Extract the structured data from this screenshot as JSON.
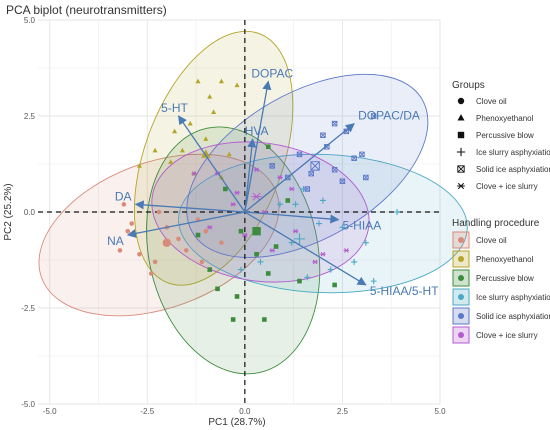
{
  "chart_data": {
    "type": "scatter",
    "title": "PCA biplot (neurotransmitters)",
    "xlabel": "PC1 (28.7%)",
    "ylabel": "PC2 (25.2%)",
    "xlim": [
      -5.3,
      5.0
    ],
    "ylim": [
      -5.0,
      5.0
    ],
    "xticks": [
      "-5.0",
      "-2.5",
      "0.0",
      "2.5",
      "5.0"
    ],
    "xtick_values": [
      -5.0,
      -2.5,
      0.0,
      2.5,
      5.0
    ],
    "yticks": [
      "5.0",
      "2.5",
      "0.0",
      "-2.5",
      "-5.0"
    ],
    "ytick_values": [
      5.0,
      2.5,
      0.0,
      -2.5,
      -5.0
    ],
    "grid": true,
    "legend_placement": "right",
    "legend_groups_title": "Groups",
    "legend_handling_title": "Handling procedure",
    "arrow_color": "#4a7ab5",
    "loadings": [
      {
        "label": "DOPAC",
        "x": 0.6,
        "y": 3.4
      },
      {
        "label": "DOPAC/DA",
        "x": 2.8,
        "y": 2.3
      },
      {
        "label": "5-HT",
        "x": -1.7,
        "y": 2.5
      },
      {
        "label": "HVA",
        "x": 0.2,
        "y": 1.9
      },
      {
        "label": "DA",
        "x": -2.8,
        "y": 0.2
      },
      {
        "label": "NA",
        "x": -3.0,
        "y": -0.6
      },
      {
        "label": "5-HIAA",
        "x": 2.4,
        "y": -0.2
      },
      {
        "label": "5-HIAA/5-HT",
        "x": 3.1,
        "y": -1.9
      }
    ],
    "series": [
      {
        "name": "Clove oil",
        "shape": "circle",
        "color": "#d98b7a",
        "centroid": [
          -2.0,
          -0.8
        ],
        "ellipse": {
          "cx": -2.2,
          "cy": -0.6,
          "rx": 3.2,
          "ry": 1.9,
          "angle": -20
        },
        "points": [
          [
            -3.1,
            0.2
          ],
          [
            -3.0,
            -0.5
          ],
          [
            -2.9,
            -0.3
          ],
          [
            -2.7,
            -1.1
          ],
          [
            -2.3,
            -1.3
          ],
          [
            -2.2,
            0.0
          ],
          [
            -2.0,
            -0.4
          ],
          [
            -1.7,
            -0.7
          ],
          [
            -1.5,
            -1.0
          ],
          [
            -1.2,
            -0.2
          ],
          [
            -1.0,
            -0.5
          ],
          [
            -0.6,
            -0.8
          ],
          [
            -2.4,
            -1.6
          ],
          [
            -3.2,
            -1.0
          ],
          [
            -1.1,
            -1.3
          ]
        ]
      },
      {
        "name": "Phenoxyethanol",
        "shape": "triangle",
        "color": "#b4a528",
        "centroid": [
          -1.0,
          1.5
        ],
        "ellipse": {
          "cx": -0.8,
          "cy": 1.4,
          "rx": 3.4,
          "ry": 1.8,
          "angle": -70
        },
        "points": [
          [
            -1.2,
            3.4
          ],
          [
            -0.6,
            3.4
          ],
          [
            -0.2,
            3.3
          ],
          [
            -0.9,
            3.0
          ],
          [
            -1.0,
            1.9
          ],
          [
            -1.6,
            1.6
          ],
          [
            -1.9,
            1.3
          ],
          [
            -2.7,
            1.2
          ],
          [
            -1.3,
            1.0
          ],
          [
            -0.6,
            0.9
          ],
          [
            -0.4,
            1.5
          ],
          [
            -1.4,
            2.3
          ],
          [
            -0.8,
            2.6
          ],
          [
            -1.8,
            2.1
          ],
          [
            -2.3,
            1.6
          ]
        ]
      },
      {
        "name": "Percussive blow",
        "shape": "square",
        "color": "#3d8c3d",
        "centroid": [
          0.3,
          -0.5
        ],
        "ellipse": {
          "cx": -0.3,
          "cy": -1.0,
          "rx": 3.2,
          "ry": 2.2,
          "angle": 78
        },
        "points": [
          [
            -0.2,
            -2.2
          ],
          [
            0.5,
            -2.8
          ],
          [
            0.6,
            -1.6
          ],
          [
            1.4,
            -1.8
          ],
          [
            2.3,
            -1.9
          ],
          [
            0.3,
            -1.1
          ],
          [
            -0.9,
            -1.5
          ],
          [
            -1.2,
            -0.6
          ],
          [
            -0.5,
            0.6
          ],
          [
            0.6,
            1.7
          ],
          [
            1.1,
            0.3
          ],
          [
            -0.1,
            -0.5
          ],
          [
            -0.7,
            -2.0
          ],
          [
            0.8,
            -0.9
          ],
          [
            -0.3,
            -2.8
          ]
        ]
      },
      {
        "name": "Ice slurry asphyxiation",
        "shape": "plus",
        "color": "#4aa8c4",
        "centroid": [
          1.4,
          -0.7
        ],
        "ellipse": {
          "cx": 2.0,
          "cy": -0.3,
          "rx": 3.7,
          "ry": 1.8,
          "angle": 2
        },
        "points": [
          [
            0.9,
            0.2
          ],
          [
            1.3,
            0.2
          ],
          [
            1.5,
            0.6
          ],
          [
            2.0,
            0.3
          ],
          [
            1.9,
            -0.3
          ],
          [
            2.2,
            -1.5
          ],
          [
            2.5,
            -0.4
          ],
          [
            3.1,
            -0.8
          ],
          [
            3.3,
            -1.8
          ],
          [
            3.9,
            0.0
          ],
          [
            1.2,
            -0.8
          ],
          [
            1.6,
            -1.7
          ],
          [
            0.4,
            -1.3
          ],
          [
            -0.1,
            -1.5
          ],
          [
            2.8,
            -1.3
          ]
        ]
      },
      {
        "name": "Solid ice asphyxiation",
        "shape": "square-x",
        "color": "#5b78c8",
        "centroid": [
          1.8,
          1.2
        ],
        "ellipse": {
          "cx": 1.6,
          "cy": 1.2,
          "rx": 3.4,
          "ry": 1.9,
          "angle": -30
        },
        "points": [
          [
            2.3,
            2.3
          ],
          [
            2.6,
            2.1
          ],
          [
            2.0,
            2.0
          ],
          [
            3.0,
            1.5
          ],
          [
            2.8,
            1.4
          ],
          [
            2.3,
            1.1
          ],
          [
            1.4,
            1.5
          ],
          [
            1.7,
            1.0
          ],
          [
            1.1,
            0.9
          ],
          [
            1.6,
            0.6
          ],
          [
            3.1,
            0.9
          ],
          [
            3.3,
            2.5
          ],
          [
            2.1,
            1.7
          ],
          [
            0.7,
            1.2
          ],
          [
            2.5,
            0.8
          ]
        ]
      },
      {
        "name": "Clove + ice slurry",
        "shape": "asterisk",
        "color": "#b55bd0",
        "centroid": [
          0.3,
          0.4
        ],
        "ellipse": {
          "cx": 0.4,
          "cy": 0.0,
          "rx": 2.8,
          "ry": 1.8,
          "angle": 8
        },
        "points": [
          [
            -1.3,
            1.0
          ],
          [
            -0.7,
            1.0
          ],
          [
            0.3,
            1.1
          ],
          [
            0.9,
            0.9
          ],
          [
            1.2,
            0.6
          ],
          [
            -0.3,
            0.2
          ],
          [
            0.5,
            0.0
          ],
          [
            1.3,
            -0.5
          ],
          [
            2.0,
            -1.1
          ],
          [
            2.6,
            -1.0
          ],
          [
            -0.9,
            -0.4
          ],
          [
            0.0,
            -0.6
          ],
          [
            0.7,
            -1.0
          ],
          [
            1.8,
            -1.3
          ],
          [
            -0.2,
            0.5
          ]
        ]
      }
    ],
    "legend_groups": [
      {
        "label": "Clove oil",
        "shape": "circle"
      },
      {
        "label": "Phenoxyethanol",
        "shape": "triangle"
      },
      {
        "label": "Percussive blow",
        "shape": "square"
      },
      {
        "label": "Ice slurry asphyxiation",
        "shape": "plus"
      },
      {
        "label": "Solid ice asphyxiation",
        "shape": "square-x"
      },
      {
        "label": "Clove + ice slurry",
        "shape": "asterisk"
      }
    ],
    "legend_handling": [
      {
        "label": "Clove oil",
        "color": "#d98b7a"
      },
      {
        "label": "Phenoxyethanol",
        "color": "#b4a528"
      },
      {
        "label": "Percussive blow",
        "color": "#3d8c3d"
      },
      {
        "label": "Ice slurry asphyxiation",
        "color": "#4aa8c4"
      },
      {
        "label": "Solid ice asphyxiation",
        "color": "#5b78c8"
      },
      {
        "label": "Clove + ice slurry",
        "color": "#b55bd0"
      }
    ]
  }
}
